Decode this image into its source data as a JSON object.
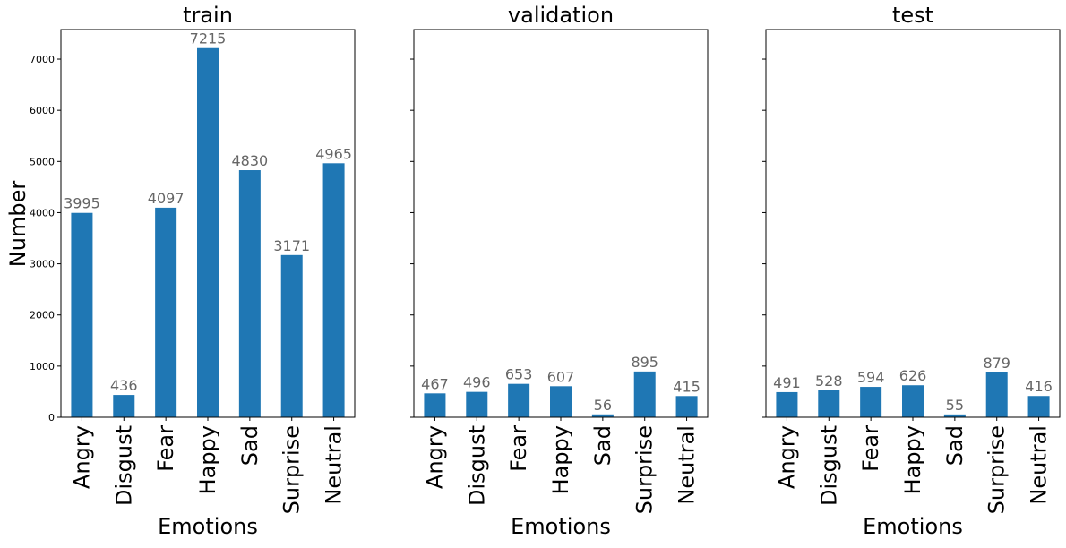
{
  "chart_data": {
    "type": "bar",
    "categories": [
      "Angry",
      "Disgust",
      "Fear",
      "Happy",
      "Sad",
      "Surprise",
      "Neutral"
    ],
    "xlabel": "Emotions",
    "ylabel": "Number",
    "ylim": [
      0,
      7578
    ],
    "yticks": [
      0,
      1000,
      2000,
      3000,
      4000,
      5000,
      6000,
      7000
    ],
    "grid": false,
    "legend": "none",
    "bar_color": "#1f77b4",
    "data_label_color": "#666666",
    "panels": [
      {
        "title": "train",
        "values": [
          3995,
          436,
          4097,
          7215,
          4830,
          3171,
          4965
        ]
      },
      {
        "title": "validation",
        "values": [
          467,
          496,
          653,
          607,
          56,
          895,
          415
        ]
      },
      {
        "title": "test",
        "values": [
          491,
          528,
          594,
          626,
          55,
          879,
          416
        ]
      }
    ]
  }
}
